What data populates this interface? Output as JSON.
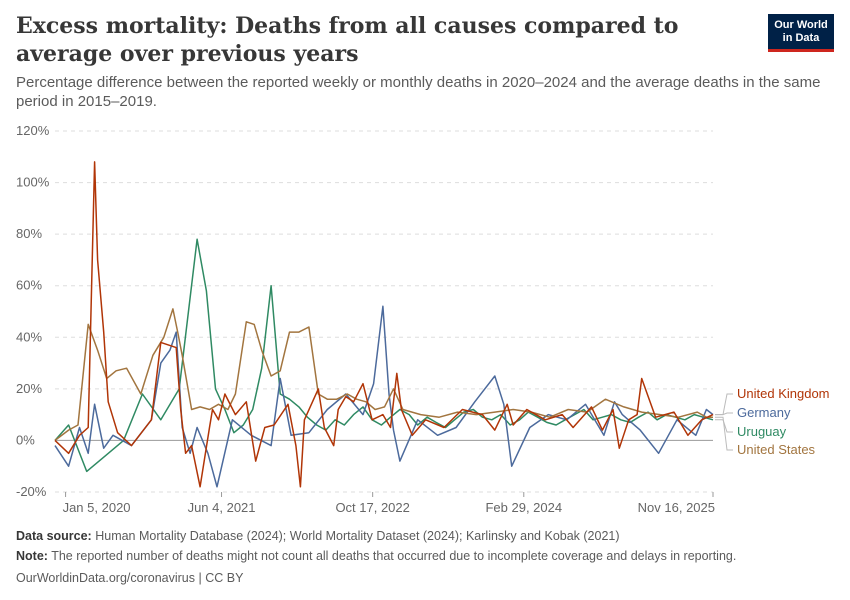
{
  "header": {
    "title": "Excess mortality: Deaths from all causes compared to average over previous years",
    "subtitle": "Percentage difference between the reported weekly or monthly deaths in 2020–2024 and the average deaths in the same period in 2015–2019.",
    "logo_line1": "Our World",
    "logo_line2": "in Data"
  },
  "footer": {
    "source_label": "Data source:",
    "source_text": "Human Mortality Database (2024); World Mortality Dataset (2024); Karlinsky and Kobak (2021)",
    "note_label": "Note:",
    "note_text": "The reported number of deaths might not count all deaths that occurred due to incomplete coverage and delays in reporting.",
    "credit": "OurWorldinData.org/coronavirus | CC BY"
  },
  "colors": {
    "united_kingdom": "#b13507",
    "germany": "#4c6a9c",
    "uruguay": "#2f8a63",
    "united_states": "#a2753f",
    "grid": "#dddddd",
    "zero_line": "#9a9a9a"
  },
  "chart_data": {
    "type": "line",
    "title": "Excess mortality: Deaths from all causes compared to average over previous years",
    "ylim": [
      -20,
      120
    ],
    "yticks": [
      -20,
      0,
      20,
      40,
      60,
      80,
      100,
      120
    ],
    "ytick_labels": [
      "-20%",
      "0%",
      "20%",
      "40%",
      "60%",
      "80%",
      "100%",
      "120%"
    ],
    "xlim": [
      "2019-12-01",
      "2025-11-16"
    ],
    "xticks": [
      "2020-01-05",
      "2021-06-04",
      "2022-10-17",
      "2024-02-29",
      "2025-11-16"
    ],
    "xtick_labels": [
      "Jan 5, 2020",
      "Jun 4, 2021",
      "Oct 17, 2022",
      "Feb 29, 2024",
      "Nov 16, 2025"
    ],
    "grid": "horizontal dashed",
    "legend": "right, at line ends",
    "series": [
      {
        "name": "United Kingdom",
        "x": [
          "2019-12-01",
          "2020-01-15",
          "2020-02-20",
          "2020-03-20",
          "2020-04-10",
          "2020-04-20",
          "2020-05-10",
          "2020-05-25",
          "2020-06-25",
          "2020-08-10",
          "2020-10-15",
          "2020-11-15",
          "2021-01-05",
          "2021-01-20",
          "2021-02-05",
          "2021-02-25",
          "2021-03-25",
          "2021-04-25",
          "2021-05-05",
          "2021-05-25",
          "2021-06-15",
          "2021-07-20",
          "2021-08-25",
          "2021-09-25",
          "2021-10-25",
          "2021-11-25",
          "2022-01-10",
          "2022-02-05",
          "2022-02-20",
          "2022-03-05",
          "2022-04-20",
          "2022-05-10",
          "2022-06-10",
          "2022-06-25",
          "2022-07-20",
          "2022-08-15",
          "2022-09-15",
          "2022-10-15",
          "2022-11-20",
          "2022-12-15",
          "2023-01-05",
          "2023-01-20",
          "2023-02-25",
          "2023-04-10",
          "2023-06-10",
          "2023-08-10",
          "2023-10-15",
          "2023-11-25",
          "2024-01-05",
          "2024-01-25",
          "2024-03-10",
          "2024-05-10",
          "2024-07-05",
          "2024-08-10",
          "2024-10-10",
          "2024-11-15",
          "2024-12-20",
          "2025-01-10",
          "2025-02-10",
          "2025-03-10",
          "2025-03-25",
          "2025-05-10",
          "2025-07-10",
          "2025-08-25",
          "2025-10-10",
          "2025-11-16"
        ],
        "values": [
          0,
          -5,
          2,
          5,
          108,
          70,
          42,
          15,
          3,
          -2,
          8,
          38,
          36,
          12,
          -5,
          -2,
          -18,
          5,
          12,
          8,
          18,
          10,
          15,
          -8,
          5,
          6,
          14,
          -2,
          -18,
          8,
          20,
          5,
          -2,
          12,
          17,
          15,
          22,
          8,
          10,
          5,
          26,
          12,
          2,
          8,
          5,
          12,
          10,
          4,
          14,
          6,
          12,
          8,
          10,
          5,
          13,
          4,
          12,
          -3,
          8,
          10,
          24,
          9,
          11,
          2,
          8,
          10
        ]
      },
      {
        "name": "Germany",
        "x": [
          "2019-12-01",
          "2020-01-15",
          "2020-02-20",
          "2020-03-20",
          "2020-04-10",
          "2020-05-10",
          "2020-06-10",
          "2020-08-10",
          "2020-10-15",
          "2020-11-15",
          "2020-12-15",
          "2021-01-05",
          "2021-01-25",
          "2021-02-20",
          "2021-03-15",
          "2021-04-20",
          "2021-05-20",
          "2021-07-10",
          "2021-09-10",
          "2021-11-15",
          "2021-12-15",
          "2022-01-20",
          "2022-03-20",
          "2022-05-20",
          "2022-07-20",
          "2022-09-15",
          "2022-10-20",
          "2022-11-20",
          "2022-12-10",
          "2022-12-25",
          "2023-01-15",
          "2023-03-15",
          "2023-05-20",
          "2023-07-20",
          "2023-09-20",
          "2023-11-25",
          "2023-12-25",
          "2024-01-20",
          "2024-03-20",
          "2024-05-20",
          "2024-07-20",
          "2024-09-20",
          "2024-11-20",
          "2024-12-25",
          "2025-01-20",
          "2025-03-20",
          "2025-05-20",
          "2025-07-20",
          "2025-09-20",
          "2025-10-25",
          "2025-11-16"
        ],
        "values": [
          -2,
          -10,
          5,
          -5,
          14,
          -3,
          2,
          -2,
          8,
          30,
          35,
          42,
          5,
          -5,
          5,
          -5,
          -18,
          8,
          2,
          -2,
          24,
          2,
          3,
          12,
          18,
          10,
          22,
          52,
          18,
          4,
          -8,
          8,
          2,
          5,
          15,
          25,
          14,
          -10,
          5,
          10,
          8,
          14,
          2,
          15,
          10,
          4,
          -5,
          8,
          2,
          12,
          10
        ]
      },
      {
        "name": "Uruguay",
        "x": [
          "2019-12-01",
          "2020-01-15",
          "2020-03-15",
          "2020-05-15",
          "2020-07-15",
          "2020-09-15",
          "2020-11-15",
          "2021-01-15",
          "2021-03-15",
          "2021-04-15",
          "2021-05-15",
          "2021-06-15",
          "2021-07-15",
          "2021-08-15",
          "2021-09-15",
          "2021-10-15",
          "2021-11-15",
          "2021-12-15",
          "2022-01-15",
          "2022-02-15",
          "2022-03-15",
          "2022-04-15",
          "2022-05-15",
          "2022-06-15",
          "2022-07-15",
          "2022-08-15",
          "2022-09-15",
          "2022-10-15",
          "2022-11-15",
          "2022-12-15",
          "2023-01-15",
          "2023-02-15",
          "2023-03-15",
          "2023-04-15",
          "2023-05-15",
          "2023-06-15",
          "2023-07-15",
          "2023-08-15",
          "2023-09-15",
          "2023-10-15",
          "2023-11-15",
          "2023-12-15",
          "2024-01-15",
          "2024-02-15",
          "2024-03-15",
          "2024-04-15",
          "2024-05-15",
          "2024-06-15",
          "2024-07-15",
          "2024-08-15",
          "2024-09-15",
          "2024-10-15",
          "2024-11-15",
          "2024-12-15",
          "2025-01-15",
          "2025-02-15",
          "2025-03-15",
          "2025-04-15",
          "2025-05-15",
          "2025-06-15",
          "2025-07-15",
          "2025-08-15",
          "2025-09-15",
          "2025-10-15",
          "2025-11-16"
        ],
        "values": [
          0,
          6,
          -12,
          -6,
          0,
          18,
          8,
          20,
          78,
          58,
          20,
          12,
          3,
          6,
          12,
          28,
          60,
          18,
          16,
          13,
          9,
          6,
          4,
          8,
          6,
          10,
          13,
          8,
          6,
          9,
          12,
          10,
          6,
          9,
          7,
          5,
          8,
          11,
          12,
          9,
          8,
          10,
          6,
          8,
          11,
          9,
          7,
          6,
          8,
          10,
          12,
          8,
          9,
          10,
          8,
          7,
          9,
          11,
          8,
          10,
          9,
          8,
          10,
          9,
          8
        ]
      },
      {
        "name": "United States",
        "x": [
          "2019-12-01",
          "2020-01-15",
          "2020-02-15",
          "2020-03-20",
          "2020-04-20",
          "2020-05-20",
          "2020-06-20",
          "2020-07-25",
          "2020-09-10",
          "2020-10-20",
          "2020-11-25",
          "2020-12-25",
          "2021-01-10",
          "2021-01-25",
          "2021-02-25",
          "2021-03-25",
          "2021-04-25",
          "2021-05-25",
          "2021-06-25",
          "2021-07-20",
          "2021-08-25",
          "2021-09-20",
          "2021-10-15",
          "2021-11-15",
          "2021-12-15",
          "2022-01-15",
          "2022-02-15",
          "2022-03-20",
          "2022-04-20",
          "2022-05-20",
          "2022-06-20",
          "2022-07-25",
          "2022-08-25",
          "2022-09-25",
          "2022-10-25",
          "2022-11-25",
          "2022-12-25",
          "2023-01-25",
          "2023-03-25",
          "2023-05-25",
          "2023-07-25",
          "2023-09-25",
          "2023-11-25",
          "2024-01-25",
          "2024-03-25",
          "2024-05-25",
          "2024-07-25",
          "2024-09-25",
          "2024-11-25",
          "2025-01-25",
          "2025-03-25",
          "2025-05-25",
          "2025-07-25",
          "2025-09-25",
          "2025-10-25",
          "2025-11-16"
        ],
        "values": [
          0,
          4,
          6,
          45,
          35,
          24,
          27,
          28,
          18,
          33,
          40,
          51,
          42,
          33,
          12,
          13,
          12,
          14,
          12,
          18,
          46,
          45,
          35,
          25,
          27,
          42,
          42,
          44,
          18,
          16,
          16,
          18,
          16,
          15,
          12,
          13,
          20,
          12,
          10,
          9,
          11,
          10,
          11,
          12,
          11,
          9,
          12,
          11,
          16,
          13,
          11,
          10,
          9,
          11,
          9,
          9
        ]
      }
    ],
    "legend_order": [
      "United Kingdom",
      "Germany",
      "Uruguay",
      "United States"
    ]
  }
}
